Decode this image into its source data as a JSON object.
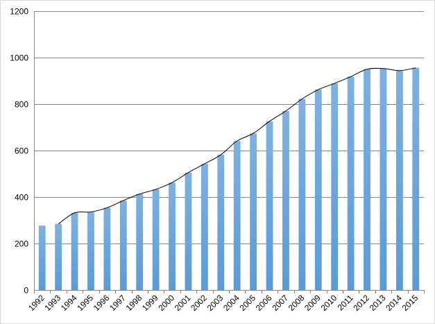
{
  "chart_data": {
    "type": "bar",
    "title": "",
    "xlabel": "",
    "ylabel": "",
    "categories": [
      "1992",
      "1993",
      "1994",
      "1995",
      "1996",
      "1997",
      "1998",
      "1999",
      "2000",
      "2001",
      "2002",
      "2003",
      "2004",
      "2005",
      "2006",
      "2007",
      "2008",
      "2009",
      "2010",
      "2011",
      "2012",
      "2013",
      "2014",
      "2015"
    ],
    "series": [
      {
        "values": [
          277,
          284,
          332,
          336,
          354,
          385,
          413,
          433,
          462,
          505,
          543,
          582,
          641,
          674,
          726,
          770,
          822,
          862,
          889,
          918,
          950,
          953,
          944,
          956
        ]
      }
    ],
    "trendline": {
      "type": "smoothed-line",
      "x_from": "1993",
      "x_to": "2015"
    },
    "yticks": [
      0,
      200,
      400,
      600,
      800,
      1000,
      1200
    ],
    "ylim": [
      0,
      1200
    ],
    "grid": "horizontal",
    "legend": "none",
    "bar_color": "#5b9bd5",
    "bar_color_light": "#7db1e0",
    "line_color": "#000000",
    "grid_color": "#868686"
  }
}
